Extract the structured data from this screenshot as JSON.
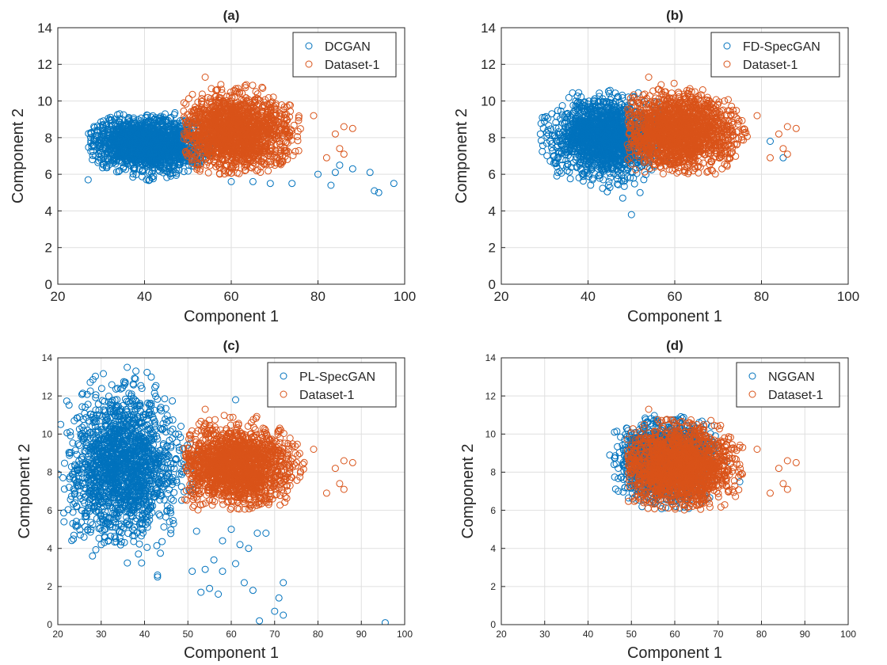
{
  "colors": {
    "generated": "#0072BD",
    "dataset": "#D95319"
  },
  "chart_data": [
    {
      "type": "scatter",
      "title": "(a)",
      "xlabel": "Component 1",
      "ylabel": "Component 2",
      "xlim": [
        20,
        100
      ],
      "ylim": [
        0,
        14
      ],
      "xticks": [
        20,
        40,
        60,
        80,
        100
      ],
      "yticks": [
        0,
        2,
        4,
        6,
        8,
        10,
        12,
        14
      ],
      "grid": true,
      "legend_position": "top-right",
      "series": [
        {
          "name": "DCGAN",
          "color": "#0072BD",
          "cluster": {
            "center": [
              41,
              7.6
            ],
            "spread": [
              6.5,
              0.75
            ],
            "range_x": [
              27,
              56
            ],
            "range_y": [
              5.6,
              9.4
            ]
          },
          "outliers": [
            [
              27,
              5.7
            ],
            [
              92,
              6.1
            ],
            [
              93,
              5.1
            ],
            [
              94,
              5.0
            ],
            [
              97.5,
              5.5
            ],
            [
              88,
              6.3
            ],
            [
              85,
              6.5
            ],
            [
              84,
              6.1
            ],
            [
              83,
              5.4
            ],
            [
              80,
              6.0
            ],
            [
              74,
              5.5
            ],
            [
              69,
              5.5
            ],
            [
              65,
              5.6
            ],
            [
              60,
              5.6
            ]
          ]
        },
        {
          "name": "Dataset-1",
          "color": "#D95319",
          "cluster": {
            "center": [
              61,
              8.3
            ],
            "spread": [
              6.5,
              1.0
            ],
            "range_x": [
              49,
              80
            ],
            "range_y": [
              6.0,
              11.4
            ]
          },
          "outliers": [
            [
              86,
              8.6
            ],
            [
              88,
              8.5
            ],
            [
              85,
              7.4
            ],
            [
              86,
              7.1
            ],
            [
              84,
              8.2
            ],
            [
              54,
              11.3
            ],
            [
              82,
              6.9
            ],
            [
              79,
              9.2
            ]
          ]
        }
      ]
    },
    {
      "type": "scatter",
      "title": "(b)",
      "xlabel": "Component 1",
      "ylabel": "Component 2",
      "xlim": [
        20,
        100
      ],
      "ylim": [
        0,
        14
      ],
      "xticks": [
        20,
        40,
        60,
        80,
        100
      ],
      "yticks": [
        0,
        2,
        4,
        6,
        8,
        10,
        12,
        14
      ],
      "grid": true,
      "legend_position": "top-right",
      "series": [
        {
          "name": "FD-SpecGAN",
          "color": "#0072BD",
          "cluster": {
            "center": [
              44,
              8.0
            ],
            "spread": [
              5.5,
              1.0
            ],
            "range_x": [
              29,
              60
            ],
            "range_y": [
              4.9,
              10.8
            ]
          },
          "outliers": [
            [
              29,
              8.2
            ],
            [
              50,
              3.8
            ],
            [
              48,
              4.7
            ],
            [
              52,
              5.0
            ],
            [
              82,
              7.8
            ],
            [
              85,
              6.9
            ],
            [
              33,
              6.1
            ]
          ]
        },
        {
          "name": "Dataset-1",
          "color": "#D95319",
          "cluster": {
            "center": [
              61,
              8.3
            ],
            "spread": [
              6.5,
              1.0
            ],
            "range_x": [
              49,
              80
            ],
            "range_y": [
              6.0,
              11.4
            ]
          },
          "outliers": [
            [
              86,
              8.6
            ],
            [
              88,
              8.5
            ],
            [
              85,
              7.4
            ],
            [
              86,
              7.1
            ],
            [
              84,
              8.2
            ],
            [
              54,
              11.3
            ],
            [
              82,
              6.9
            ],
            [
              79,
              9.2
            ]
          ]
        }
      ]
    },
    {
      "type": "scatter",
      "title": "(c)",
      "xlabel": "Component 1",
      "ylabel": "Component 2",
      "xlim": [
        20,
        100
      ],
      "ylim": [
        0,
        14
      ],
      "xticks": [
        20,
        30,
        40,
        50,
        60,
        70,
        80,
        90,
        100
      ],
      "yticks": [
        0,
        2,
        4,
        6,
        8,
        10,
        12,
        14
      ],
      "grid": true,
      "legend_position": "top-right",
      "series": [
        {
          "name": "PL-SpecGAN",
          "color": "#0072BD",
          "cluster": {
            "center": [
              35,
              8.3
            ],
            "spread": [
              6.0,
              1.8
            ],
            "range_x": [
              20,
              55
            ],
            "range_y": [
              3.2,
              13.5
            ]
          },
          "outliers": [
            [
              66.5,
              0.2
            ],
            [
              70,
              0.7
            ],
            [
              72,
              0.5
            ],
            [
              95.5,
              0.1
            ],
            [
              72,
              2.2
            ],
            [
              71,
              1.4
            ],
            [
              63,
              2.2
            ],
            [
              65,
              1.8
            ],
            [
              55,
              1.9
            ],
            [
              57,
              1.6
            ],
            [
              54,
              2.9
            ],
            [
              58,
              2.8
            ],
            [
              61,
              3.2
            ],
            [
              53,
              1.7
            ],
            [
              62,
              4.2
            ],
            [
              64,
              4.0
            ],
            [
              66,
              4.8
            ],
            [
              68,
              4.8
            ],
            [
              60,
              5.0
            ],
            [
              58,
              4.4
            ],
            [
              52,
              4.9
            ],
            [
              51,
              2.8
            ],
            [
              43,
              2.6
            ],
            [
              43,
              2.5
            ],
            [
              56,
              3.4
            ],
            [
              61,
              11.8
            ],
            [
              28,
              3.6
            ],
            [
              30,
              4.2
            ],
            [
              38,
              13.3
            ],
            [
              36,
              13.5
            ]
          ]
        },
        {
          "name": "Dataset-1",
          "color": "#D95319",
          "cluster": {
            "center": [
              61,
              8.3
            ],
            "spread": [
              6.5,
              1.0
            ],
            "range_x": [
              49,
              80
            ],
            "range_y": [
              6.0,
              11.4
            ]
          },
          "outliers": [
            [
              86,
              8.6
            ],
            [
              88,
              8.5
            ],
            [
              85,
              7.4
            ],
            [
              86,
              7.1
            ],
            [
              84,
              8.2
            ],
            [
              54,
              11.3
            ],
            [
              82,
              6.9
            ],
            [
              79,
              9.2
            ]
          ]
        }
      ]
    },
    {
      "type": "scatter",
      "title": "(d)",
      "xlabel": "Component 1",
      "ylabel": "Component 2",
      "xlim": [
        20,
        100
      ],
      "ylim": [
        0,
        14
      ],
      "xticks": [
        20,
        30,
        40,
        50,
        60,
        70,
        80,
        90,
        100
      ],
      "yticks": [
        0,
        2,
        4,
        6,
        8,
        10,
        12,
        14
      ],
      "grid": true,
      "legend_position": "top-right",
      "series": [
        {
          "name": "NGGAN",
          "color": "#0072BD",
          "cluster": {
            "center": [
              58,
              8.6
            ],
            "spread": [
              5.0,
              1.0
            ],
            "range_x": [
              46,
              74
            ],
            "range_y": [
              5.7,
              11.0
            ]
          },
          "outliers": [
            [
              45,
              8.9
            ],
            [
              46,
              8.4
            ],
            [
              47,
              7.0
            ],
            [
              49,
              10.3
            ],
            [
              75,
              7.5
            ]
          ]
        },
        {
          "name": "Dataset-1",
          "color": "#D95319",
          "cluster": {
            "center": [
              61,
              8.3
            ],
            "spread": [
              6.5,
              1.0
            ],
            "range_x": [
              49,
              80
            ],
            "range_y": [
              6.0,
              11.4
            ]
          },
          "outliers": [
            [
              86,
              8.6
            ],
            [
              88,
              8.5
            ],
            [
              85,
              7.4
            ],
            [
              86,
              7.1
            ],
            [
              84,
              8.2
            ],
            [
              54,
              11.3
            ],
            [
              82,
              6.9
            ],
            [
              79,
              9.2
            ]
          ]
        }
      ]
    }
  ]
}
